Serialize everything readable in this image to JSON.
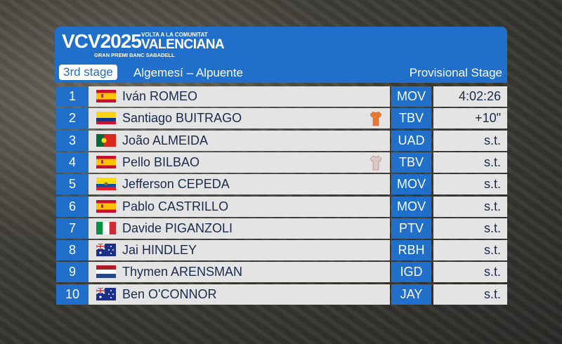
{
  "header": {
    "logo": "VCV2025",
    "logo_top": "VOLTA A LA COMUNITAT",
    "logo_name": "VALENCIANA",
    "logo_sub": "GRAN PREMI BANC SABADELL",
    "stage": "3rd stage",
    "route": "Algemesí – Alpuente",
    "status": "Provisional Stage"
  },
  "table": {
    "rows": [
      [
        "1",
        "Iván ROMEO",
        "MOV",
        "4:02:26"
      ],
      [
        "2",
        "Santiago BUITRAGO",
        "TBV",
        "+10\""
      ],
      [
        "3",
        "João ALMEIDA",
        "UAD",
        "s.t."
      ],
      [
        "4",
        "Pello BILBAO",
        "TBV",
        "s.t."
      ],
      [
        "5",
        "Jefferson CEPEDA",
        "MOV",
        "s.t."
      ],
      [
        "6",
        "Pablo CASTRILLO",
        "MOV",
        "s.t."
      ],
      [
        "7",
        "Davide PIGANZOLI",
        "PTV",
        "s.t."
      ],
      [
        "8",
        "Jai HINDLEY",
        "RBH",
        "s.t."
      ],
      [
        "9",
        "Thymen ARENSMAN",
        "IGD",
        "s.t."
      ],
      [
        "10",
        "Ben O'CONNOR",
        "JAY",
        "s.t."
      ]
    ]
  }
}
